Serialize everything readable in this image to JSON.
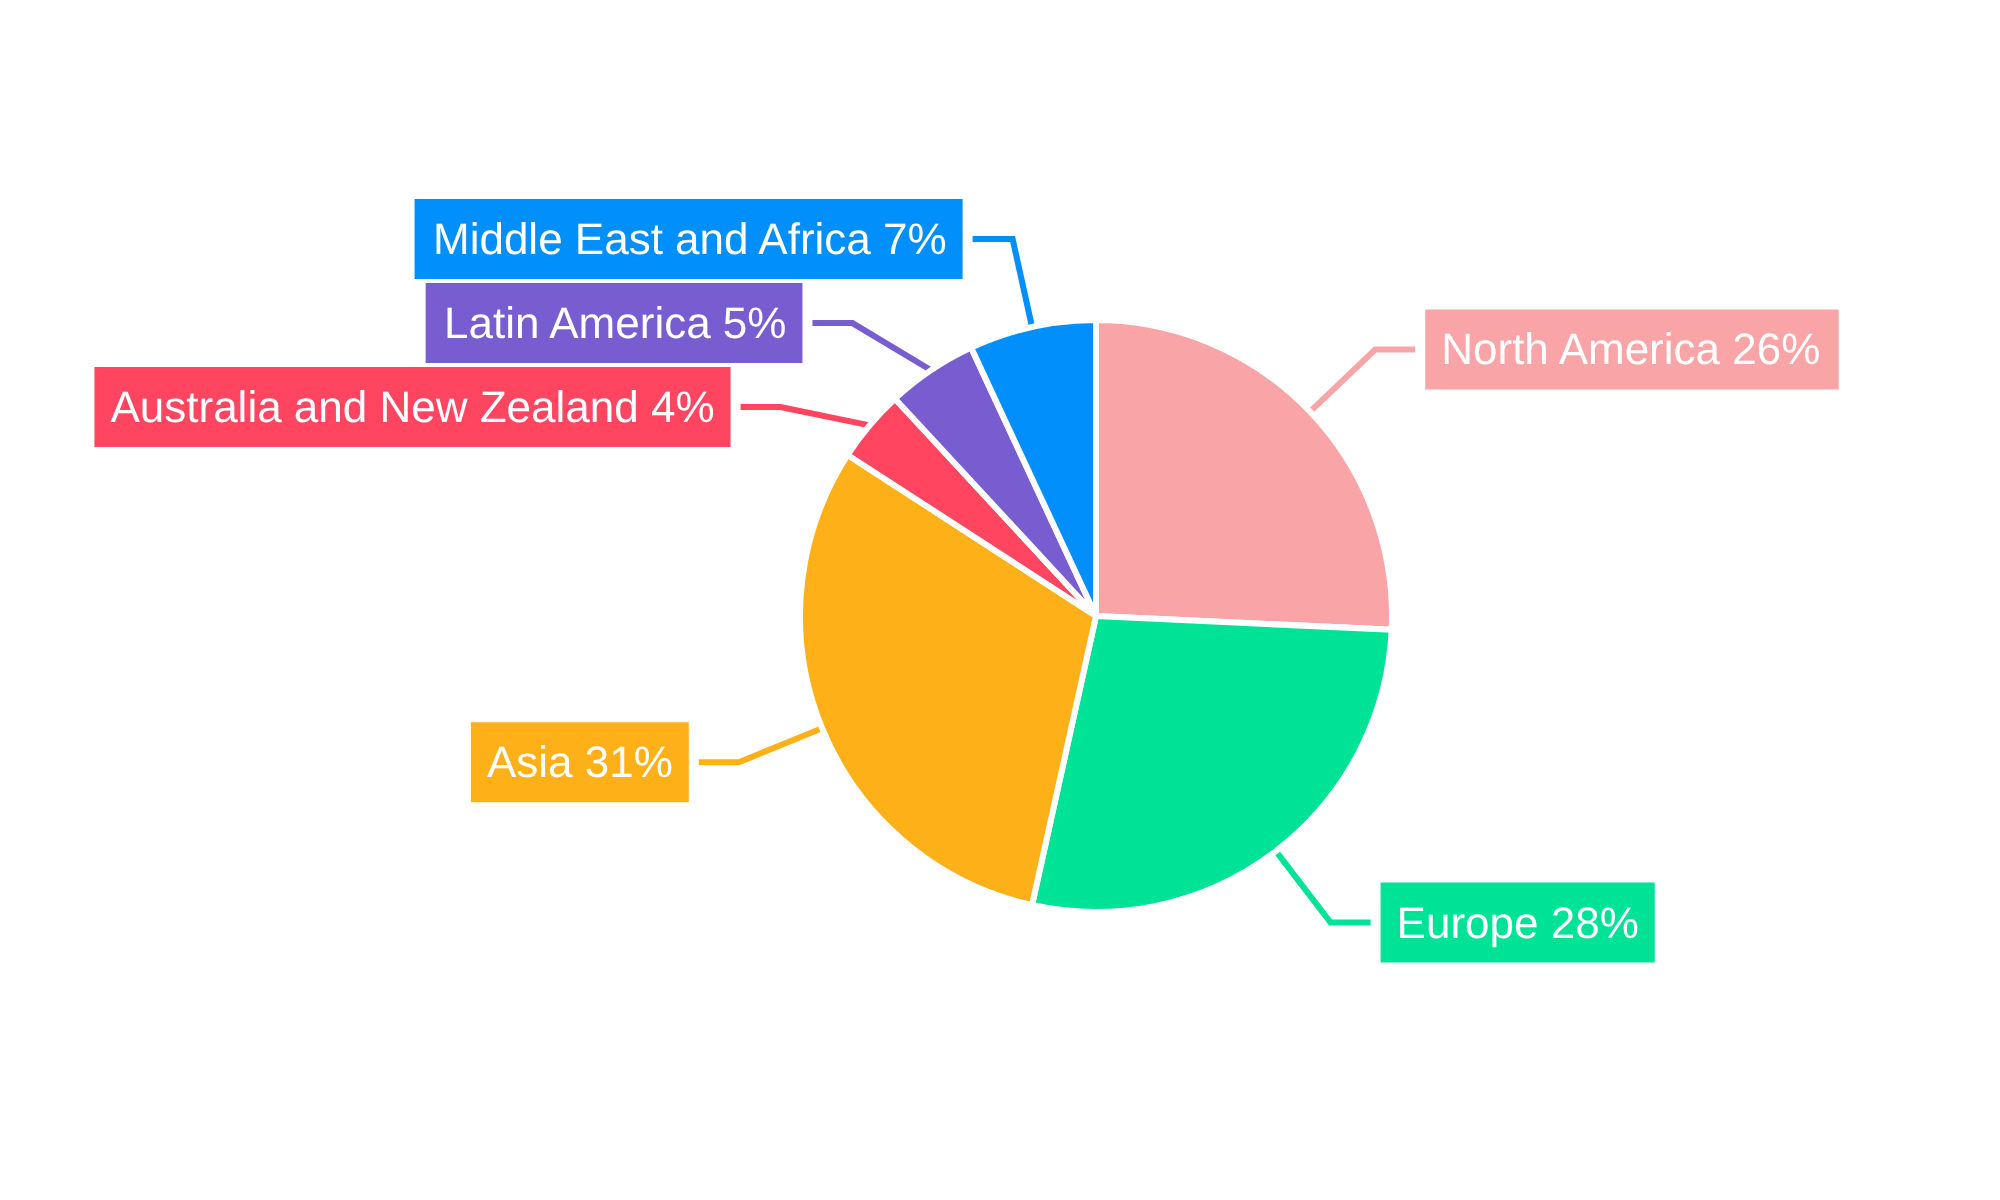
{
  "chart_data": {
    "type": "pie",
    "categories": [
      "North America",
      "Europe",
      "Asia",
      "Australia and New Zealand",
      "Latin America",
      "Middle East and Africa"
    ],
    "values": [
      26,
      28,
      31,
      4,
      5,
      7
    ],
    "colors": [
      "#f9a5a7",
      "#00e396",
      "#feb019",
      "#ff4560",
      "#775dd0",
      "#008ffb"
    ],
    "value_labels": [
      "26%",
      "28%",
      "31%",
      "4%",
      "5%",
      "7%"
    ],
    "legend": false
  }
}
